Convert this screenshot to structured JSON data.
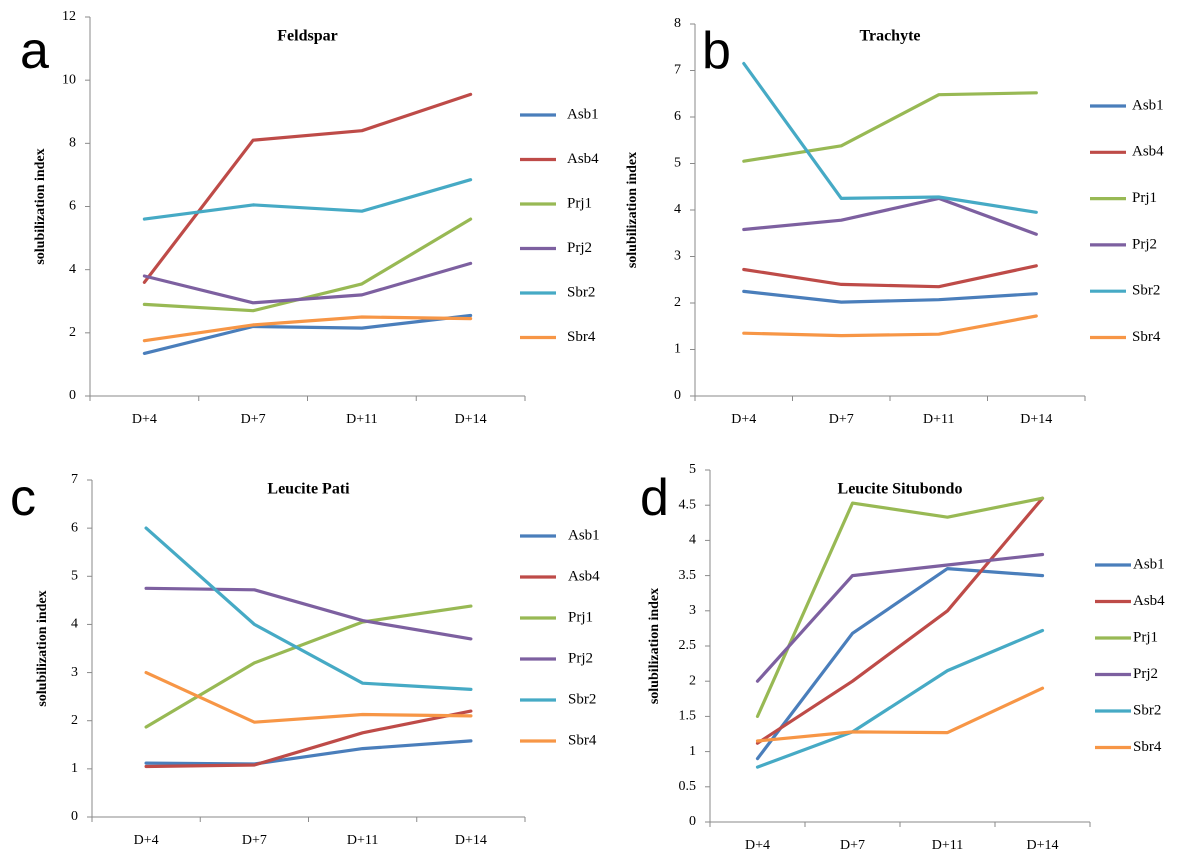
{
  "chart_data": [
    {
      "type": "line",
      "panel_label": "a",
      "title": "Feldspar",
      "ylabel": "solubilization index",
      "categories": [
        "D+4",
        "D+7",
        "D+11",
        "D+14"
      ],
      "ylim": [
        0,
        12
      ],
      "yticks": [
        "0",
        "2",
        "4",
        "6",
        "8",
        "10",
        "12"
      ],
      "series": [
        {
          "name": "Asb1",
          "color": "#4a7ebb",
          "values": [
            1.35,
            2.2,
            2.15,
            2.55
          ]
        },
        {
          "name": "Asb4",
          "color": "#be4b48",
          "values": [
            3.6,
            8.1,
            8.4,
            9.55
          ]
        },
        {
          "name": "Prj1",
          "color": "#98b954",
          "values": [
            2.9,
            2.7,
            3.55,
            5.6
          ]
        },
        {
          "name": "Prj2",
          "color": "#7d60a0",
          "values": [
            3.8,
            2.95,
            3.2,
            4.2
          ]
        },
        {
          "name": "Sbr2",
          "color": "#46aac5",
          "values": [
            5.6,
            6.05,
            5.85,
            6.85
          ]
        },
        {
          "name": "Sbr4",
          "color": "#f79646",
          "values": [
            1.75,
            2.25,
            2.5,
            2.45
          ]
        }
      ]
    },
    {
      "type": "line",
      "panel_label": "b",
      "title": "Trachyte",
      "ylabel": "solubilization index",
      "categories": [
        "D+4",
        "D+7",
        "D+11",
        "D+14"
      ],
      "ylim": [
        0,
        8
      ],
      "yticks": [
        "0",
        "1",
        "2",
        "3",
        "4",
        "5",
        "6",
        "7",
        "8"
      ],
      "series": [
        {
          "name": "Asb1",
          "color": "#4a7ebb",
          "values": [
            2.25,
            2.02,
            2.07,
            2.2
          ]
        },
        {
          "name": "Asb4",
          "color": "#be4b48",
          "values": [
            2.72,
            2.4,
            2.35,
            2.8
          ]
        },
        {
          "name": "Prj1",
          "color": "#98b954",
          "values": [
            5.05,
            5.38,
            6.48,
            6.52
          ]
        },
        {
          "name": "Prj2",
          "color": "#7d60a0",
          "values": [
            3.58,
            3.78,
            4.25,
            3.48
          ]
        },
        {
          "name": "Sbr2",
          "color": "#46aac5",
          "values": [
            7.15,
            4.25,
            4.28,
            3.95
          ]
        },
        {
          "name": "Sbr4",
          "color": "#f79646",
          "values": [
            1.35,
            1.3,
            1.33,
            1.72
          ]
        }
      ]
    },
    {
      "type": "line",
      "panel_label": "c",
      "title": "Leucite Pati",
      "ylabel": "solubilization index",
      "categories": [
        "D+4",
        "D+7",
        "D+11",
        "D+14"
      ],
      "ylim": [
        0,
        7
      ],
      "yticks": [
        "0",
        "1",
        "2",
        "3",
        "4",
        "5",
        "6",
        "7"
      ],
      "series": [
        {
          "name": "Asb1",
          "color": "#4a7ebb",
          "values": [
            1.12,
            1.1,
            1.42,
            1.58
          ]
        },
        {
          "name": "Asb4",
          "color": "#be4b48",
          "values": [
            1.05,
            1.08,
            1.75,
            2.2
          ]
        },
        {
          "name": "Prj1",
          "color": "#98b954",
          "values": [
            1.87,
            3.2,
            4.05,
            4.38
          ]
        },
        {
          "name": "Prj2",
          "color": "#7d60a0",
          "values": [
            4.75,
            4.72,
            4.08,
            3.7
          ]
        },
        {
          "name": "Sbr2",
          "color": "#46aac5",
          "values": [
            6.0,
            4.0,
            2.78,
            2.65
          ]
        },
        {
          "name": "Sbr4",
          "color": "#f79646",
          "values": [
            3.0,
            1.97,
            2.13,
            2.1
          ]
        }
      ]
    },
    {
      "type": "line",
      "panel_label": "d",
      "title": "Leucite Situbondo",
      "ylabel": "solubilization index",
      "categories": [
        "D+4",
        "D+7",
        "D+11",
        "D+14"
      ],
      "ylim": [
        0,
        5
      ],
      "yticks": [
        "0",
        "0.5",
        "1",
        "1.5",
        "2",
        "2.5",
        "3",
        "3.5",
        "4",
        "4.5",
        "5"
      ],
      "series": [
        {
          "name": "Asb1",
          "color": "#4a7ebb",
          "values": [
            0.9,
            2.68,
            3.6,
            3.5
          ]
        },
        {
          "name": "Asb4",
          "color": "#be4b48",
          "values": [
            1.12,
            2.0,
            3.0,
            4.6
          ]
        },
        {
          "name": "Prj1",
          "color": "#98b954",
          "values": [
            1.5,
            4.53,
            4.33,
            4.6
          ]
        },
        {
          "name": "Prj2",
          "color": "#7d60a0",
          "values": [
            2.0,
            3.5,
            3.65,
            3.8
          ]
        },
        {
          "name": "Sbr2",
          "color": "#46aac5",
          "values": [
            0.78,
            1.28,
            2.15,
            2.72
          ]
        },
        {
          "name": "Sbr4",
          "color": "#f79646",
          "values": [
            1.15,
            1.28,
            1.27,
            1.9
          ]
        }
      ]
    }
  ]
}
